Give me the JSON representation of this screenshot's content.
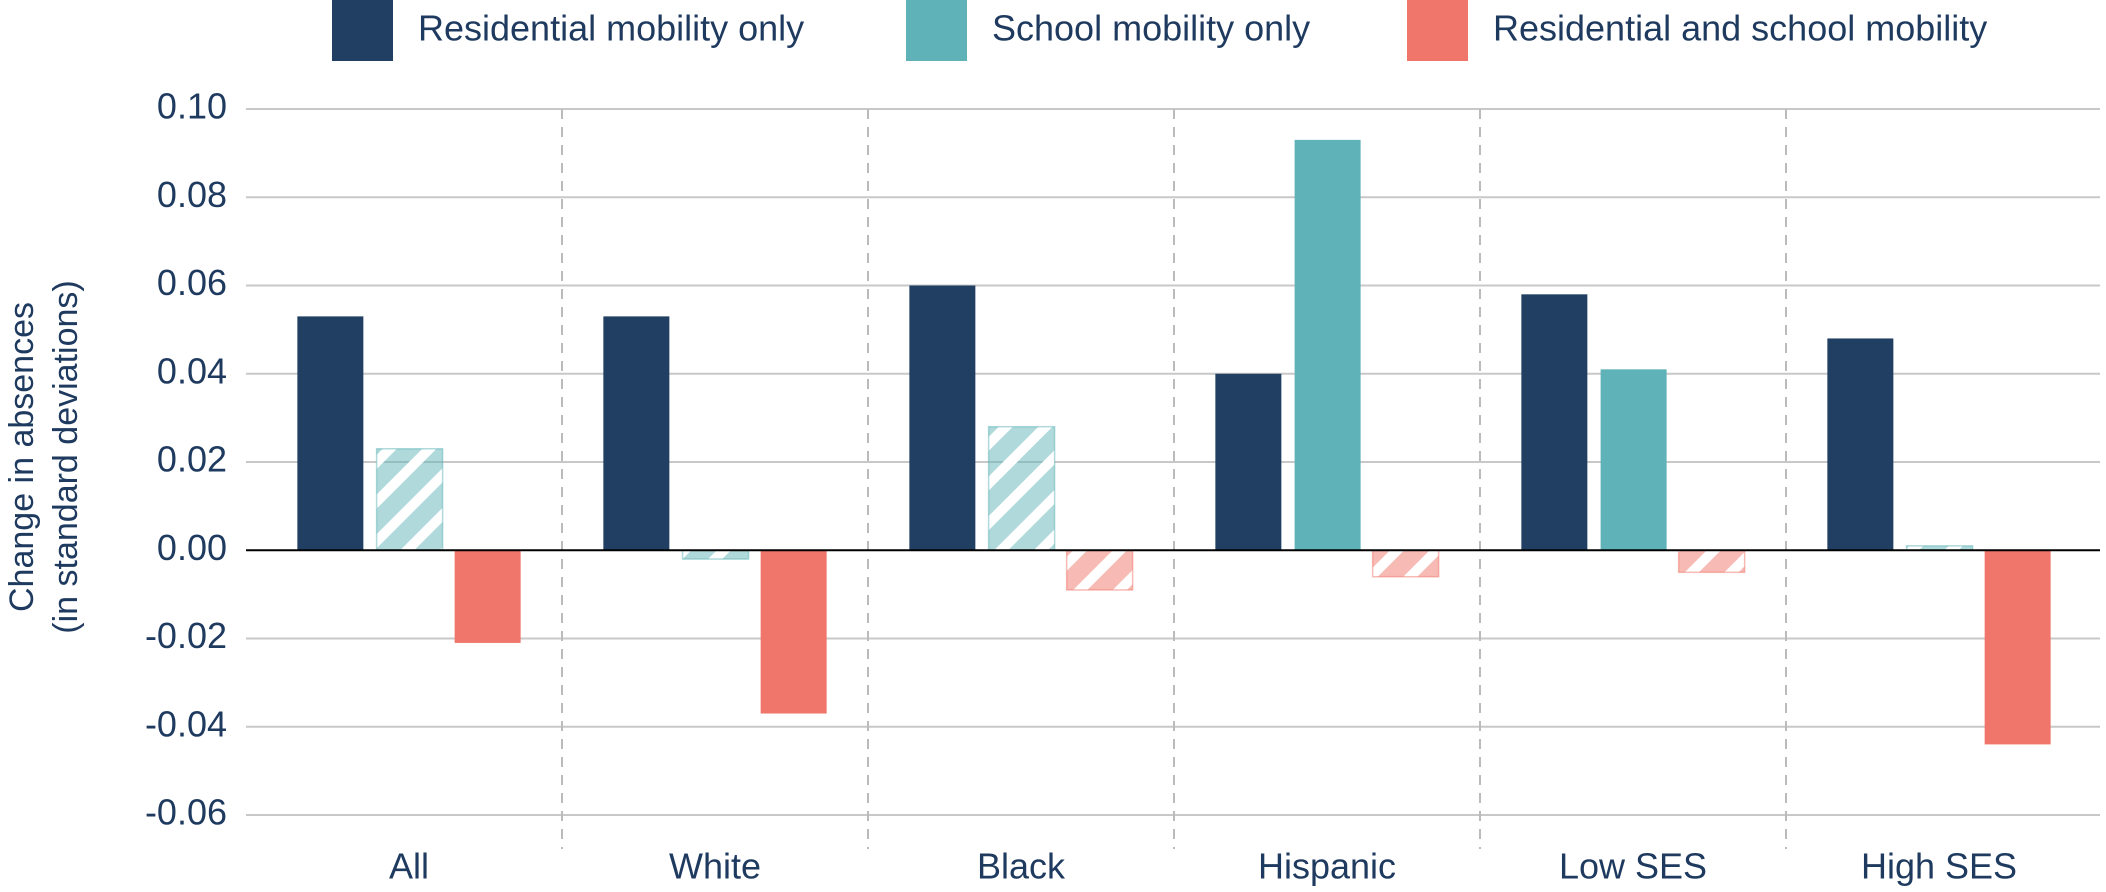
{
  "chart_data": {
    "type": "bar",
    "y_label": [
      "Change in absences",
      "(in standard deviations)"
    ],
    "categories": [
      "All",
      "White",
      "Black",
      "Hispanic",
      "Low SES",
      "High SES"
    ],
    "series": [
      {
        "name": "Residential mobility only",
        "color": "#203f63",
        "values": [
          0.053,
          0.053,
          0.06,
          0.04,
          0.058,
          0.048
        ],
        "hatched": [
          false,
          false,
          false,
          false,
          false,
          false
        ]
      },
      {
        "name": "School mobility only",
        "color": "#5fb3b8",
        "values": [
          0.023,
          -0.002,
          0.028,
          0.093,
          0.041,
          0.001
        ],
        "hatched": [
          true,
          true,
          true,
          false,
          false,
          true
        ]
      },
      {
        "name": "Residential and school mobility",
        "color": "#f0756a",
        "values": [
          -0.021,
          -0.037,
          -0.009,
          -0.006,
          -0.005,
          -0.044
        ],
        "hatched": [
          false,
          false,
          true,
          true,
          true,
          false
        ]
      }
    ],
    "ylim": [
      -0.06,
      0.1
    ],
    "yticks": [
      {
        "value": 0.1,
        "label": "0.10"
      },
      0.08,
      0.06,
      0.04,
      0.02,
      {
        "value": 0,
        "label": "0.00"
      },
      {
        "value": -0.02,
        "label": "-0.02"
      },
      {
        "value": -0.04,
        "label": "-0.04"
      },
      {
        "value": -0.06,
        "label": "-0.06"
      }
    ],
    "grid": true,
    "legend": "top"
  }
}
